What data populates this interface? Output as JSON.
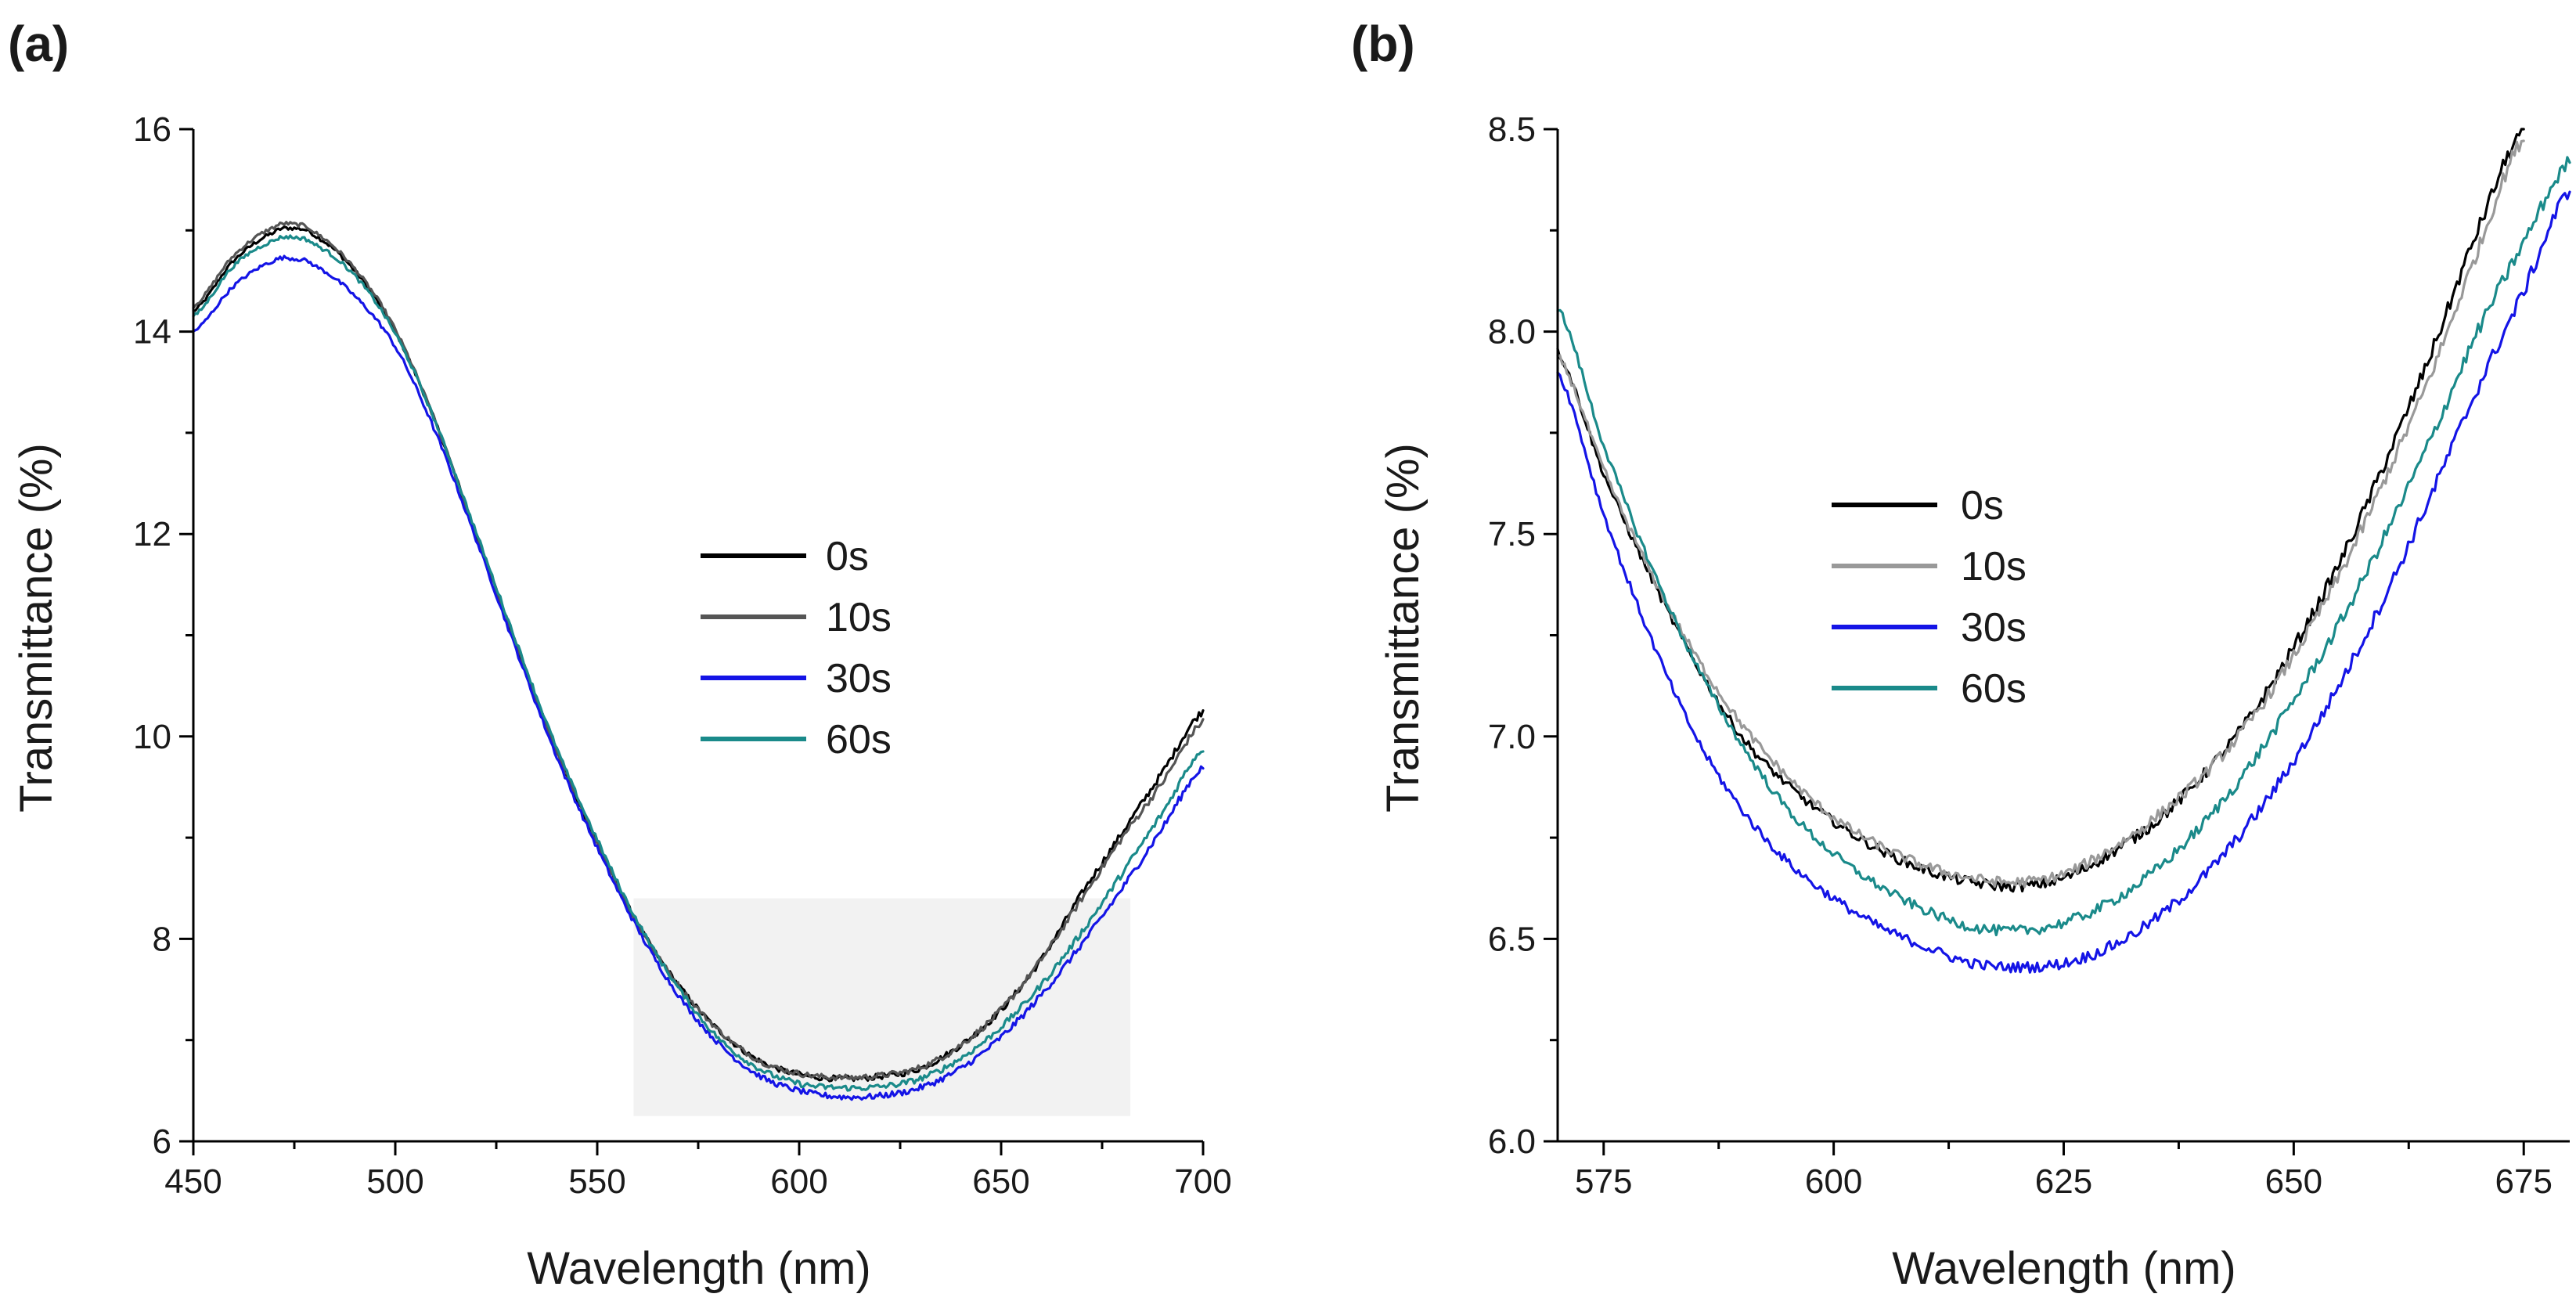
{
  "chart_data": [
    {
      "id": "a",
      "panel_label": "(a)",
      "type": "line",
      "title": "",
      "xlabel": "Wavelength (nm)",
      "ylabel": "Transmittance (%)",
      "xlim": [
        450,
        700
      ],
      "ylim": [
        6,
        16
      ],
      "xticks": [
        450,
        500,
        550,
        600,
        650,
        700
      ],
      "xtick_labels": [
        "450",
        "500",
        "550",
        "600",
        "650",
        "700"
      ],
      "yticks": [
        6,
        8,
        10,
        12,
        14,
        16
      ],
      "ytick_labels": [
        "6",
        "8",
        "10",
        "12",
        "14",
        "16"
      ],
      "legend_position": "center-right",
      "highlight_region": {
        "x": [
          559,
          682
        ],
        "y": [
          6.25,
          8.4
        ],
        "color": "#f2f2f2"
      },
      "series": [
        {
          "name": "0s",
          "color": "#000000",
          "x": [
            450,
            460,
            470,
            475,
            480,
            490,
            500,
            510,
            520,
            530,
            540,
            550,
            560,
            570,
            580,
            590,
            600,
            610,
            620,
            630,
            640,
            650,
            660,
            670,
            680,
            690,
            700
          ],
          "values": [
            14.2,
            14.7,
            14.98,
            15.02,
            14.95,
            14.6,
            14.0,
            13.1,
            12.0,
            10.9,
            9.85,
            8.95,
            8.15,
            7.55,
            7.1,
            6.8,
            6.66,
            6.62,
            6.64,
            6.72,
            6.95,
            7.3,
            7.8,
            8.45,
            9.05,
            9.65,
            10.25
          ]
        },
        {
          "name": "10s",
          "color": "#555555",
          "x": [
            450,
            460,
            470,
            475,
            480,
            490,
            500,
            510,
            520,
            530,
            540,
            550,
            560,
            570,
            580,
            590,
            600,
            610,
            620,
            630,
            640,
            650,
            660,
            670,
            680,
            690,
            700
          ],
          "values": [
            14.25,
            14.75,
            15.03,
            15.06,
            14.98,
            14.62,
            14.02,
            13.1,
            12.0,
            10.9,
            9.85,
            8.95,
            8.15,
            7.55,
            7.1,
            6.8,
            6.67,
            6.63,
            6.65,
            6.73,
            6.95,
            7.3,
            7.8,
            8.4,
            9.0,
            9.55,
            10.15
          ]
        },
        {
          "name": "30s",
          "color": "#1414e6",
          "x": [
            450,
            460,
            470,
            475,
            480,
            490,
            500,
            510,
            520,
            530,
            540,
            550,
            560,
            570,
            580,
            590,
            600,
            610,
            620,
            630,
            640,
            650,
            660,
            670,
            680,
            690,
            700
          ],
          "values": [
            14.0,
            14.45,
            14.7,
            14.72,
            14.65,
            14.35,
            13.85,
            13.0,
            11.95,
            10.85,
            9.8,
            8.9,
            8.1,
            7.45,
            6.97,
            6.65,
            6.5,
            6.44,
            6.45,
            6.53,
            6.72,
            7.03,
            7.45,
            7.95,
            8.5,
            9.1,
            9.7
          ]
        },
        {
          "name": "60s",
          "color": "#1a8a8a",
          "x": [
            450,
            460,
            470,
            475,
            480,
            490,
            500,
            510,
            520,
            530,
            540,
            550,
            560,
            570,
            580,
            590,
            600,
            610,
            620,
            630,
            640,
            650,
            660,
            670,
            680,
            690,
            700
          ],
          "values": [
            14.15,
            14.65,
            14.9,
            14.93,
            14.86,
            14.55,
            13.98,
            13.1,
            12.02,
            10.93,
            9.88,
            8.98,
            8.17,
            7.52,
            7.02,
            6.72,
            6.57,
            6.53,
            6.54,
            6.62,
            6.82,
            7.13,
            7.55,
            8.07,
            8.65,
            9.25,
            9.88
          ]
        }
      ]
    },
    {
      "id": "b",
      "panel_label": "(b)",
      "type": "line",
      "title": "",
      "xlabel": "Wavelength (nm)",
      "ylabel": "Transmittance (%)",
      "xlim": [
        570,
        680
      ],
      "ylim": [
        6.0,
        8.5
      ],
      "xticks": [
        575,
        600,
        625,
        650,
        675
      ],
      "xtick_labels": [
        "575",
        "600",
        "625",
        "650",
        "675"
      ],
      "yticks": [
        6.0,
        6.5,
        7.0,
        7.5,
        8.0,
        8.5
      ],
      "ytick_labels": [
        "6.0",
        "6.5",
        "7.0",
        "7.5",
        "8.0",
        "8.5"
      ],
      "legend_position": "upper-left",
      "series": [
        {
          "name": "0s",
          "color": "#000000",
          "x": [
            570,
            575,
            580,
            585,
            590,
            595,
            600,
            605,
            610,
            615,
            620,
            625,
            630,
            635,
            640,
            645,
            650,
            655,
            660,
            665,
            670,
            675
          ],
          "values": [
            7.95,
            7.65,
            7.4,
            7.18,
            7.0,
            6.88,
            6.79,
            6.72,
            6.67,
            6.64,
            6.63,
            6.65,
            6.71,
            6.79,
            6.9,
            7.04,
            7.22,
            7.43,
            7.68,
            7.95,
            8.25,
            8.5
          ]
        },
        {
          "name": "10s",
          "color": "#999999",
          "x": [
            570,
            575,
            580,
            585,
            590,
            595,
            600,
            605,
            610,
            615,
            620,
            625,
            630,
            635,
            640,
            645,
            650,
            655,
            660,
            665,
            670,
            675
          ],
          "values": [
            7.94,
            7.66,
            7.41,
            7.2,
            7.03,
            6.9,
            6.8,
            6.73,
            6.68,
            6.65,
            6.64,
            6.66,
            6.72,
            6.8,
            6.9,
            7.03,
            7.2,
            7.4,
            7.64,
            7.9,
            8.2,
            8.48
          ]
        },
        {
          "name": "30s",
          "color": "#1414e6",
          "x": [
            570,
            575,
            580,
            585,
            590,
            595,
            600,
            605,
            610,
            615,
            620,
            625,
            630,
            635,
            640,
            645,
            650,
            655,
            660,
            665,
            670,
            675,
            680
          ],
          "values": [
            7.9,
            7.55,
            7.25,
            7.0,
            6.82,
            6.69,
            6.6,
            6.53,
            6.48,
            6.44,
            6.43,
            6.44,
            6.48,
            6.55,
            6.65,
            6.78,
            6.94,
            7.13,
            7.35,
            7.6,
            7.86,
            8.1,
            8.35
          ]
        },
        {
          "name": "60s",
          "color": "#1a8a8a",
          "x": [
            570,
            575,
            580,
            585,
            590,
            595,
            600,
            605,
            610,
            615,
            620,
            625,
            630,
            635,
            640,
            645,
            650,
            655,
            660,
            665,
            670,
            675,
            680
          ],
          "values": [
            8.06,
            7.72,
            7.43,
            7.18,
            6.98,
            6.82,
            6.71,
            6.63,
            6.57,
            6.53,
            6.52,
            6.54,
            6.59,
            6.67,
            6.78,
            6.92,
            7.09,
            7.28,
            7.5,
            7.74,
            8.0,
            8.22,
            8.42
          ]
        }
      ]
    }
  ]
}
